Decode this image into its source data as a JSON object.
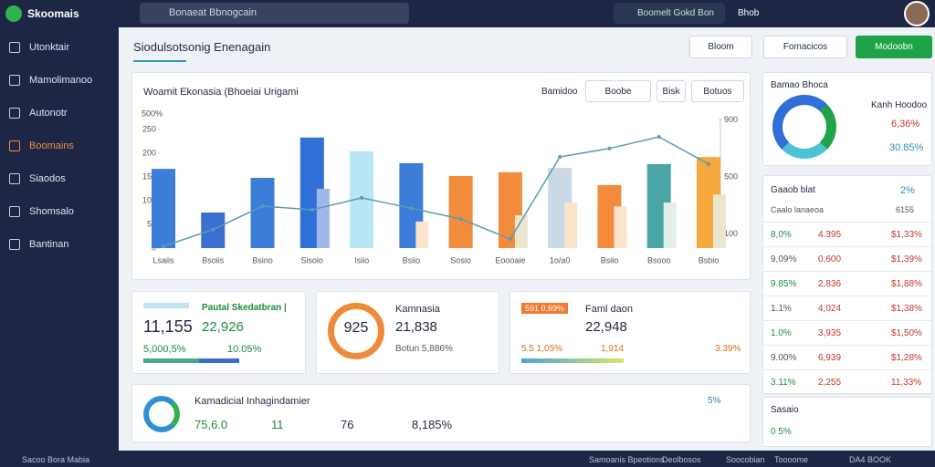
{
  "topbar": {
    "brand": "Skoomais",
    "search": "Bonaeat Bbnogcain",
    "action": "Boomelt Gokd Bon",
    "user": "Bhob"
  },
  "sidebar": [
    "Utonktair",
    "Mamolimanoo",
    "Autonotr",
    "Boomains",
    "Siaodos",
    "Shomsalo",
    "Bantinan"
  ],
  "header": {
    "title": "Siodulsotsonig Enenagain",
    "buttons": [
      "Bloom",
      "Fomacicos",
      "Modoobn"
    ]
  },
  "main_chart": {
    "type": "bar",
    "title": "Woamit Ekonasia (Bhoeiai Urigami",
    "controls": [
      "Bamidoo",
      "Boobe",
      "Bisk",
      "Botuos"
    ],
    "y_label": "500%",
    "categories": [
      "Lsaiis",
      "Bsoiis",
      "Bsino",
      "Sisoio",
      "Isiio",
      "Bsiio",
      "Sosio",
      "Eoooaie",
      "1o/a0",
      "Bsiio",
      "Bsooo",
      "Bsbio"
    ],
    "series": [
      {
        "colors": [
          "#3b7dd8",
          "#3a6fd0",
          "#3b7dd8",
          "#2f6fd6",
          "#b9e6f5",
          "#3b7dd8",
          "#f28c3c",
          "#f28c3c",
          "#c9d9e6",
          "#f28c3c",
          "#4aa6a6",
          "#f5a83c"
        ],
        "values": [
          167,
          75,
          148,
          233,
          204,
          179,
          152,
          160,
          169,
          133,
          177,
          192
        ]
      },
      {
        "colors": [
          "#9fb6e8",
          "#9fb6e8",
          "#9fb6e8",
          "#9fb6e8",
          "#cfeef8",
          "#fbe3cc",
          "#fbe3cc",
          "#ece6cf",
          "#fbe3cc",
          "#fbe3cc",
          "#e3efe9",
          "#ece6cf"
        ],
        "values": [
          null,
          null,
          null,
          125,
          null,
          56,
          null,
          69,
          96,
          88,
          96,
          113
        ]
      },
      {
        "axis": "y2",
        "color": "#5a9bb0",
        "values": [
          13,
          130,
          295,
          269,
          353,
          280,
          205,
          64,
          641,
          700,
          782,
          590
        ]
      }
    ],
    "ylim": [
      0,
      300
    ],
    "yticks": [
      0,
      50,
      100,
      150,
      200,
      250
    ],
    "y2lim": [
      0,
      1000
    ],
    "y2ticks": [
      100,
      500,
      900
    ]
  },
  "kpis": [
    {
      "title": "Pautal Skedatbran |",
      "value": "11,155",
      "value2": "22,926",
      "sub": "5,000,5%",
      "sub2": "10.05%"
    },
    {
      "ring": "925",
      "title": "Kamnasia",
      "value": "21,838",
      "sub": "Botun 5,886%"
    },
    {
      "badge": "591 0,69%",
      "title": "Faml daon",
      "value": "22,948",
      "sub": "5.5 1,05%",
      "sub2": "1,914",
      "sub3": "3.39%"
    },
    {
      "title": "Kamadicial Inhagindamier",
      "values": [
        "75,6.0",
        "11",
        "76",
        "8,185%"
      ],
      "corner": "5%"
    }
  ],
  "right": {
    "donut_card": {
      "title": "Bamao Bhoca",
      "label": "Kanh Hoodoo",
      "value": "6,36%",
      "sub": "30.85%"
    },
    "table_card": {
      "title": "Gaaob blat",
      "corner": "2%",
      "header": [
        "Caalo lanaeoa",
        "6155"
      ],
      "rows": [
        [
          "8,0%",
          "4.395",
          "$1,33%"
        ],
        [
          "9,09%",
          "0,600",
          "$1,39%"
        ],
        [
          "9.85%",
          "2,836",
          "$1,88%"
        ],
        [
          "1.1%",
          "4,024",
          "$1,38%"
        ],
        [
          "1.0%",
          "3,935",
          "$1,50%"
        ],
        [
          "9.00%",
          "6,939",
          "$1,28%"
        ],
        [
          "3.11%",
          "2,255",
          "11,33%"
        ]
      ]
    },
    "small_card": {
      "title": "Sasaio",
      "value": "0 5%"
    }
  },
  "footer": {
    "left": "Sacoo Bora Mabia",
    "right": [
      "Samoanis Bpeotions",
      "Deolbosos",
      "Soocobian",
      "Toooome",
      "DA4 BOOK"
    ]
  }
}
